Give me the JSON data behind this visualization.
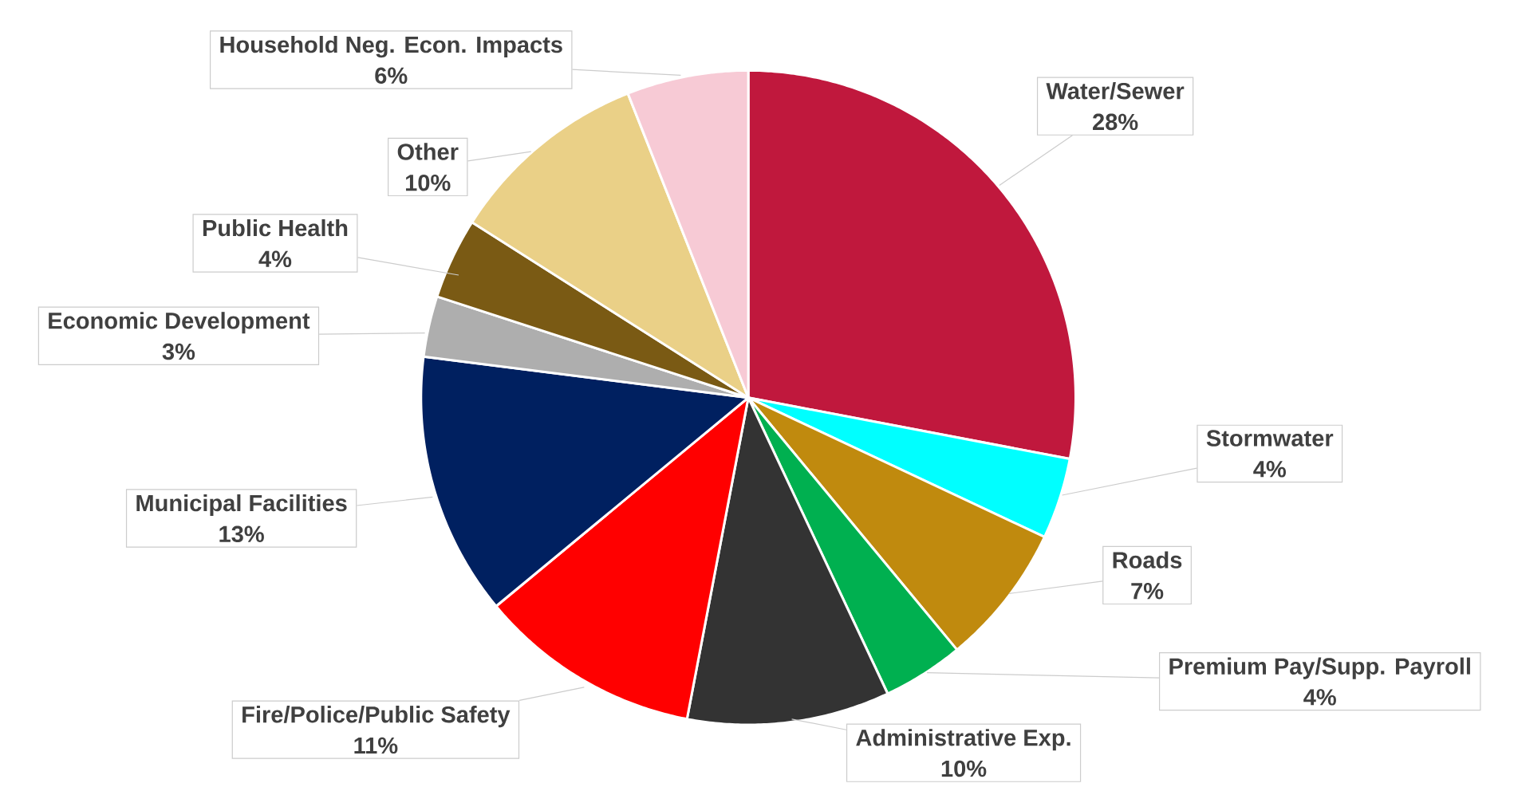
{
  "chart_data": {
    "type": "pie",
    "categories": [
      "Water/Sewer",
      "Stormwater",
      "Roads",
      "Premium Pay/Supp. Payroll",
      "Administrative Exp.",
      "Fire/Police/Public Safety",
      "Municipal Facilities",
      "Economic Development",
      "Public Health",
      "Other",
      "Household Neg. Econ. Impacts"
    ],
    "values": [
      28,
      4,
      7,
      4,
      10,
      11,
      13,
      3,
      4,
      10,
      6
    ],
    "colors": [
      "#c0183d",
      "#00ffff",
      "#c08a0e",
      "#00b050",
      "#333333",
      "#ff0000",
      "#002060",
      "#aeaeae",
      "#7a5a14",
      "#ead087",
      "#f7cad5"
    ],
    "value_labels": [
      "28%",
      "4%",
      "7%",
      "4%",
      "10%",
      "11%",
      "13%",
      "3%",
      "4%",
      "10%",
      "6%"
    ]
  }
}
